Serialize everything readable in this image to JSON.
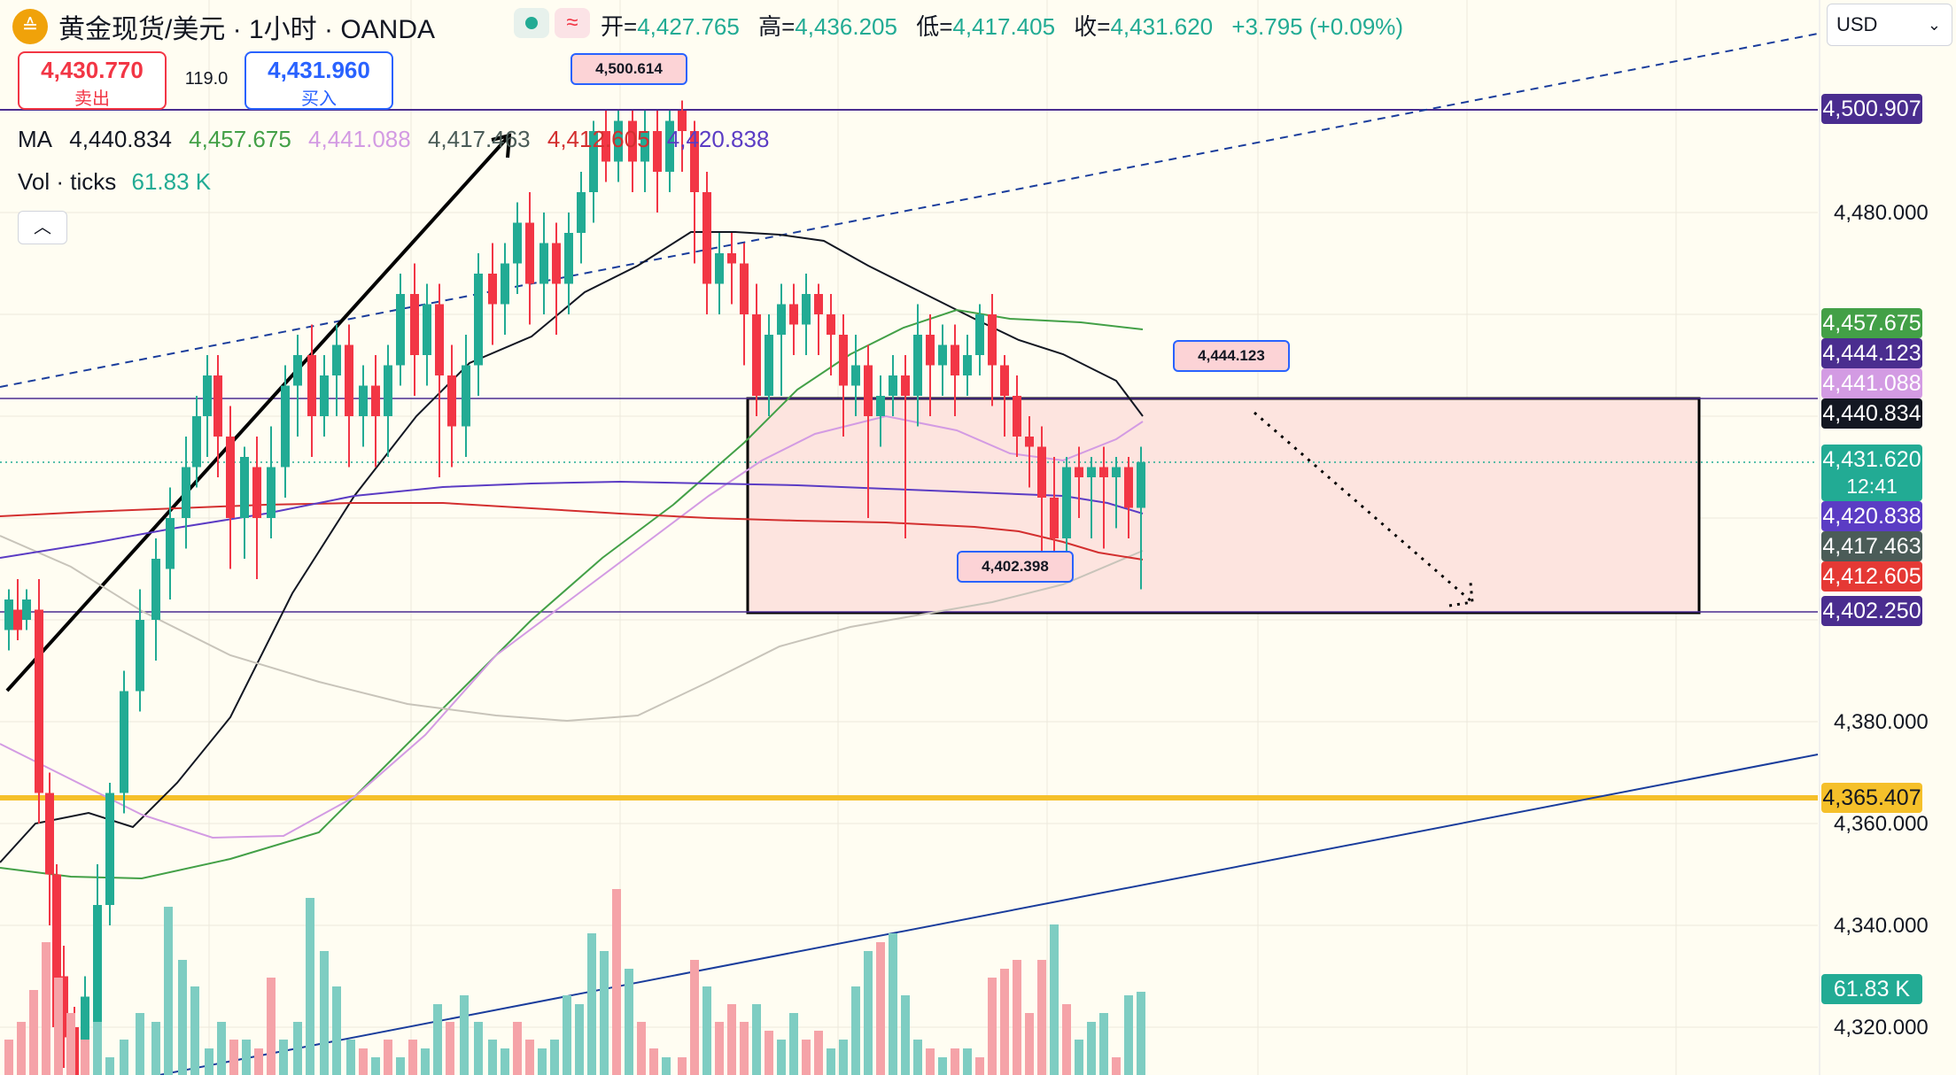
{
  "header": {
    "title": "黄金现货/美元 · 1小时 · OANDA",
    "logo_glyph": "≙",
    "ohlc": [
      {
        "label": "开=",
        "value": "4,427.765"
      },
      {
        "label": "高=",
        "value": "4,436.205"
      },
      {
        "label": "低=",
        "value": "4,417.405"
      },
      {
        "label": "收=",
        "value": "4,431.620"
      }
    ],
    "change": "+3.795 (+0.09%)"
  },
  "trade": {
    "sell_price": "4,430.770",
    "sell_label": "卖出",
    "spread": "119.0",
    "buy_price": "4,431.960",
    "buy_label": "买入"
  },
  "indicators": {
    "ma_label": "MA",
    "ma_values": [
      {
        "value": "4,440.834",
        "color": "#131722"
      },
      {
        "value": "4,457.675",
        "color": "#43a047"
      },
      {
        "value": "4,441.088",
        "color": "#d39be3"
      },
      {
        "value": "4,417.463",
        "color": "#4b5c58"
      },
      {
        "value": "4,412.605",
        "color": "#d32f2f"
      },
      {
        "value": "4,420.838",
        "color": "#5b3cc4"
      }
    ],
    "vol_label": "Vol · ticks",
    "vol_value": "61.83 K"
  },
  "controls": {
    "collapse_glyph": "︿",
    "currency": "USD",
    "currency_chevron": "⌄"
  },
  "axis": {
    "ticks": [
      {
        "label": "4,480.000",
        "value": 4480
      },
      {
        "label": "4,380.000",
        "value": 4380
      },
      {
        "label": "4,360.000",
        "value": 4360
      },
      {
        "label": "4,340.000",
        "value": 4340
      },
      {
        "label": "4,320.000",
        "value": 4320
      }
    ],
    "price_labels": [
      {
        "text": "4,500.907",
        "value": 4500.907,
        "color": "#4a2d8f"
      },
      {
        "text": "4,457.675",
        "value": 4457.675,
        "color": "#43a047"
      },
      {
        "text": "4,444.123",
        "value": 4444.123,
        "color": "#4a2d8f"
      },
      {
        "text": "4,441.088",
        "value": 4441.088,
        "color": "#d39be3"
      },
      {
        "text": "4,440.834",
        "value": 4440.834,
        "color": "#131722"
      },
      {
        "text": "4,420.838",
        "value": 4420.838,
        "color": "#5b3cc4"
      },
      {
        "text": "4,417.463",
        "value": 4417.463,
        "color": "#4b5c58"
      },
      {
        "text": "4,412.605",
        "value": 4412.605,
        "color": "#e53935"
      },
      {
        "text": "4,402.250",
        "value": 4402.25,
        "color": "#4a2d8f"
      },
      {
        "text": "4,365.407",
        "value": 4365.407,
        "color": "#f5c02a"
      }
    ],
    "current": {
      "price": "4,431.620",
      "countdown": "12:41"
    },
    "volume_label": "61.83 K"
  },
  "callouts": [
    {
      "text": "4,500.614"
    },
    {
      "text": "4,444.123"
    },
    {
      "text": "4,402.398"
    }
  ],
  "colors": {
    "up": "#22ab94",
    "down": "#f23645",
    "up_vol": "#7ecdc2",
    "down_vol": "#f5a3a8",
    "box_fill": "#fde4df",
    "support": "#f5c02a",
    "level_line": "#4a2d8f",
    "trend_blue": "#1a3d9c"
  }
}
